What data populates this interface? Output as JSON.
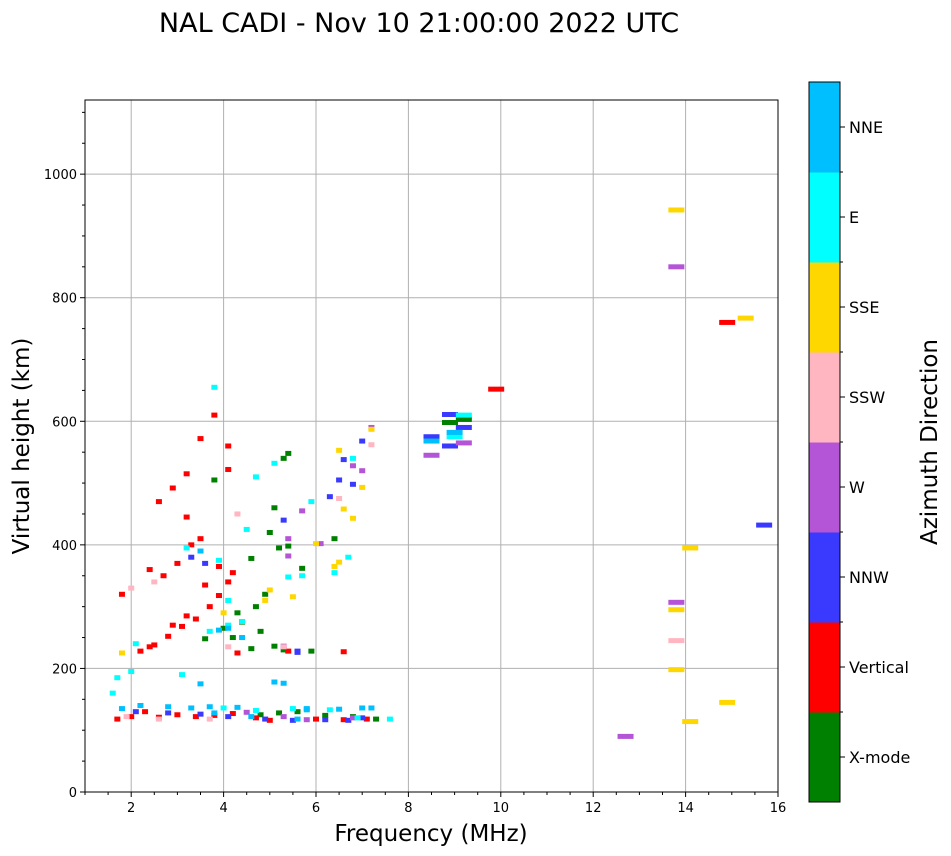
{
  "chart_data": {
    "type": "scatter",
    "title": "NAL CADI - Nov 10 21:00:00 2022 UTC",
    "xlabel": "Frequency (MHz)",
    "ylabel": "Virtual height (km)",
    "xlim": [
      1,
      16
    ],
    "ylim": [
      0,
      1120
    ],
    "xticks": [
      2,
      4,
      6,
      8,
      10,
      12,
      14,
      16
    ],
    "yticks": [
      0,
      200,
      400,
      600,
      800,
      1000
    ],
    "grid": true,
    "colorbar": {
      "title": "Azimuth Direction",
      "categories": [
        {
          "name": "X-mode",
          "color": "#008000"
        },
        {
          "name": "Vertical",
          "color": "#ff0000"
        },
        {
          "name": "NNW",
          "color": "#3a3aff"
        },
        {
          "name": "W",
          "color": "#b454d6"
        },
        {
          "name": "SSW",
          "color": "#ffb6c1"
        },
        {
          "name": "SSE",
          "color": "#ffd700"
        },
        {
          "name": "E",
          "color": "#00ffff"
        },
        {
          "name": "NNE",
          "color": "#00bfff"
        }
      ]
    },
    "series": [
      {
        "name": "X-mode",
        "points": [
          [
            4.8,
            125
          ],
          [
            5.2,
            128
          ],
          [
            5.6,
            130
          ],
          [
            6.2,
            124
          ],
          [
            6.8,
            122
          ],
          [
            7.3,
            118
          ],
          [
            4.2,
            250
          ],
          [
            4.4,
            275
          ],
          [
            4.7,
            300
          ],
          [
            4.9,
            320
          ],
          [
            5.0,
            420
          ],
          [
            5.1,
            460
          ],
          [
            5.3,
            540
          ],
          [
            5.4,
            548
          ],
          [
            5.7,
            362
          ],
          [
            6.4,
            410
          ],
          [
            3.8,
            505
          ],
          [
            4.6,
            378
          ],
          [
            5.9,
            228
          ],
          [
            4.6,
            232
          ],
          [
            5.1,
            236
          ],
          [
            5.3,
            230
          ],
          [
            3.6,
            248
          ],
          [
            4.0,
            265
          ],
          [
            4.3,
            290
          ],
          [
            4.8,
            260
          ],
          [
            5.2,
            395
          ],
          [
            8.9,
            598
          ],
          [
            9.2,
            603
          ],
          [
            5.4,
            398
          ]
        ]
      },
      {
        "name": "Vertical",
        "points": [
          [
            1.7,
            118
          ],
          [
            2.0,
            122
          ],
          [
            2.3,
            130
          ],
          [
            2.6,
            121
          ],
          [
            3.0,
            125
          ],
          [
            3.4,
            122
          ],
          [
            3.8,
            124
          ],
          [
            4.2,
            127
          ],
          [
            4.7,
            120
          ],
          [
            5.0,
            116
          ],
          [
            6.0,
            118
          ],
          [
            6.6,
            117
          ],
          [
            7.1,
            118
          ],
          [
            2.2,
            228
          ],
          [
            2.5,
            238
          ],
          [
            2.8,
            252
          ],
          [
            3.1,
            268
          ],
          [
            3.4,
            280
          ],
          [
            3.7,
            300
          ],
          [
            3.9,
            318
          ],
          [
            4.1,
            340
          ],
          [
            3.2,
            285
          ],
          [
            2.9,
            270
          ],
          [
            2.4,
            235
          ],
          [
            3.6,
            335
          ],
          [
            3.9,
            365
          ],
          [
            4.2,
            355
          ],
          [
            2.6,
            470
          ],
          [
            2.9,
            492
          ],
          [
            3.2,
            515
          ],
          [
            3.5,
            572
          ],
          [
            3.8,
            610
          ],
          [
            4.1,
            560
          ],
          [
            4.1,
            522
          ],
          [
            3.2,
            445
          ],
          [
            1.8,
            320
          ],
          [
            2.4,
            360
          ],
          [
            2.7,
            350
          ],
          [
            3.0,
            370
          ],
          [
            3.3,
            400
          ],
          [
            3.5,
            410
          ],
          [
            9.9,
            652
          ],
          [
            14.9,
            760
          ],
          [
            4.3,
            225
          ],
          [
            6.6,
            227
          ],
          [
            5.4,
            228
          ]
        ]
      },
      {
        "name": "NNW",
        "points": [
          [
            2.1,
            130
          ],
          [
            2.8,
            128
          ],
          [
            3.5,
            126
          ],
          [
            4.1,
            122
          ],
          [
            4.9,
            118
          ],
          [
            5.5,
            116
          ],
          [
            6.2,
            117
          ],
          [
            6.7,
            116
          ],
          [
            7.0,
            120
          ],
          [
            8.5,
            575
          ],
          [
            8.9,
            611
          ],
          [
            9.2,
            590
          ],
          [
            15.7,
            432
          ],
          [
            5.6,
            226
          ],
          [
            5.3,
            440
          ],
          [
            6.3,
            478
          ],
          [
            6.5,
            505
          ],
          [
            6.8,
            498
          ],
          [
            7.0,
            568
          ],
          [
            6.6,
            538
          ],
          [
            3.3,
            380
          ],
          [
            3.6,
            370
          ],
          [
            5.6,
            228
          ],
          [
            8.9,
            560
          ]
        ]
      },
      {
        "name": "W",
        "points": [
          [
            4.5,
            129
          ],
          [
            5.3,
            122
          ],
          [
            5.8,
            117
          ],
          [
            6.8,
            120
          ],
          [
            5.4,
            410
          ],
          [
            5.7,
            455
          ],
          [
            6.8,
            528
          ],
          [
            7.0,
            520
          ],
          [
            7.2,
            590
          ],
          [
            12.7,
            90
          ],
          [
            13.8,
            850
          ],
          [
            13.8,
            307
          ],
          [
            8.5,
            545
          ],
          [
            9.2,
            565
          ],
          [
            5.4,
            382
          ],
          [
            6.1,
            402
          ],
          [
            5.3,
            236
          ]
        ]
      },
      {
        "name": "SSW",
        "points": [
          [
            1.9,
            122
          ],
          [
            2.6,
            118
          ],
          [
            3.7,
            118
          ],
          [
            13.8,
            245
          ],
          [
            4.1,
            235
          ],
          [
            5.3,
            235
          ],
          [
            4.3,
            450
          ],
          [
            2.5,
            340
          ],
          [
            2.0,
            330
          ],
          [
            7.2,
            562
          ],
          [
            6.5,
            475
          ]
        ]
      },
      {
        "name": "SSE",
        "points": [
          [
            13.8,
            942
          ],
          [
            15.3,
            767
          ],
          [
            14.1,
            395
          ],
          [
            13.8,
            295
          ],
          [
            13.8,
            198
          ],
          [
            14.1,
            114
          ],
          [
            14.9,
            145
          ],
          [
            6.4,
            365
          ],
          [
            6.5,
            372
          ],
          [
            6.6,
            458
          ],
          [
            6.8,
            443
          ],
          [
            7.0,
            493
          ],
          [
            7.2,
            587
          ],
          [
            6.5,
            553
          ],
          [
            5.5,
            316
          ],
          [
            6.0,
            402
          ],
          [
            5.0,
            327
          ],
          [
            4.0,
            290
          ],
          [
            4.9,
            310
          ],
          [
            1.8,
            225
          ]
        ]
      },
      {
        "name": "E",
        "points": [
          [
            1.6,
            160
          ],
          [
            1.7,
            185
          ],
          [
            2.0,
            195
          ],
          [
            3.1,
            190
          ],
          [
            4.0,
            136
          ],
          [
            4.7,
            132
          ],
          [
            5.5,
            135
          ],
          [
            6.3,
            133
          ],
          [
            6.9,
            120
          ],
          [
            2.1,
            240
          ],
          [
            3.7,
            260
          ],
          [
            4.1,
            270
          ],
          [
            4.4,
            276
          ],
          [
            3.8,
            655
          ],
          [
            5.1,
            532
          ],
          [
            6.8,
            540
          ],
          [
            4.5,
            425
          ],
          [
            4.7,
            510
          ],
          [
            5.7,
            350
          ],
          [
            6.7,
            380
          ],
          [
            6.4,
            355
          ],
          [
            9.0,
            575
          ],
          [
            9.2,
            610
          ],
          [
            5.4,
            348
          ],
          [
            4.1,
            310
          ],
          [
            5.9,
            470
          ],
          [
            3.2,
            395
          ],
          [
            3.9,
            375
          ],
          [
            7.6,
            118
          ]
        ]
      },
      {
        "name": "NNE",
        "points": [
          [
            1.8,
            135
          ],
          [
            2.2,
            140
          ],
          [
            2.8,
            138
          ],
          [
            3.3,
            136
          ],
          [
            3.7,
            138
          ],
          [
            4.3,
            137
          ],
          [
            5.3,
            176
          ],
          [
            5.1,
            178
          ],
          [
            5.8,
            135
          ],
          [
            6.5,
            134
          ],
          [
            7.0,
            136
          ],
          [
            7.2,
            136
          ],
          [
            3.5,
            175
          ],
          [
            3.8,
            128
          ],
          [
            4.6,
            122
          ],
          [
            5.6,
            118
          ],
          [
            9.0,
            582
          ],
          [
            8.5,
            568
          ],
          [
            3.5,
            390
          ],
          [
            4.1,
            265
          ],
          [
            5.8,
            133
          ],
          [
            3.9,
            262
          ],
          [
            4.4,
            250
          ]
        ]
      }
    ]
  }
}
